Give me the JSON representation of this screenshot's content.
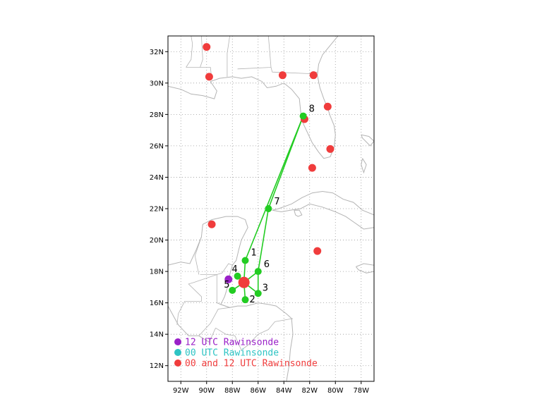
{
  "map": {
    "lon_range": [
      -93,
      -77
    ],
    "lat_range": [
      11,
      33
    ],
    "x_ticks": [
      {
        "lon": -92,
        "label": "92W"
      },
      {
        "lon": -90,
        "label": "90W"
      },
      {
        "lon": -88,
        "label": "88W"
      },
      {
        "lon": -86,
        "label": "86W"
      },
      {
        "lon": -84,
        "label": "84W"
      },
      {
        "lon": -82,
        "label": "82W"
      },
      {
        "lon": -80,
        "label": "80W"
      },
      {
        "lon": -78,
        "label": "78W"
      }
    ],
    "y_ticks": [
      {
        "lat": 12,
        "label": "12N"
      },
      {
        "lat": 14,
        "label": "14N"
      },
      {
        "lat": 16,
        "label": "16N"
      },
      {
        "lat": 18,
        "label": "18N"
      },
      {
        "lat": 20,
        "label": "20N"
      },
      {
        "lat": 22,
        "label": "22N"
      },
      {
        "lat": 24,
        "label": "24N"
      },
      {
        "lat": 26,
        "label": "26N"
      },
      {
        "lat": 28,
        "label": "28N"
      },
      {
        "lat": 30,
        "label": "30N"
      },
      {
        "lat": 32,
        "label": "32N"
      }
    ],
    "grid": true
  },
  "colors": {
    "twice_daily": "#f03c3c",
    "utc12": "#9a20c8",
    "utc00": "#2ec4c4",
    "track": "#22cc22",
    "coast": "#b4b4b4",
    "grid": "#999999"
  },
  "stations_twice_daily": [
    {
      "lon": -90.0,
      "lat": 32.3
    },
    {
      "lon": -89.8,
      "lat": 30.4
    },
    {
      "lon": -84.1,
      "lat": 30.5
    },
    {
      "lon": -81.7,
      "lat": 30.5
    },
    {
      "lon": -80.6,
      "lat": 28.5
    },
    {
      "lon": -82.4,
      "lat": 27.7
    },
    {
      "lon": -80.4,
      "lat": 25.8
    },
    {
      "lon": -81.8,
      "lat": 24.6
    },
    {
      "lon": -89.6,
      "lat": 21.0
    },
    {
      "lon": -81.4,
      "lat": 19.3
    },
    {
      "lon": -87.1,
      "lat": 17.3
    }
  ],
  "stations_12utc": [
    {
      "lon": -88.3,
      "lat": 17.5
    }
  ],
  "flight_points": [
    {
      "id": "1",
      "lon": -87.0,
      "lat": 18.7
    },
    {
      "id": "2",
      "lon": -87.0,
      "lat": 16.2
    },
    {
      "id": "3",
      "lon": -86.0,
      "lat": 16.6
    },
    {
      "id": "4",
      "lon": -87.6,
      "lat": 17.7
    },
    {
      "id": "5",
      "lon": -88.0,
      "lat": 16.8
    },
    {
      "id": "6",
      "lon": -86.0,
      "lat": 18.0
    },
    {
      "id": "7",
      "lon": -85.2,
      "lat": 22.0
    },
    {
      "id": "8",
      "lon": -82.5,
      "lat": 27.9
    }
  ],
  "legend": [
    {
      "label": "12 UTC Rawinsonde",
      "key": "utc12"
    },
    {
      "label": "00 UTC Rawinsonde",
      "key": "utc00"
    },
    {
      "label": "00 and 12 UTC Rawinsonde",
      "key": "twice_daily"
    }
  ]
}
